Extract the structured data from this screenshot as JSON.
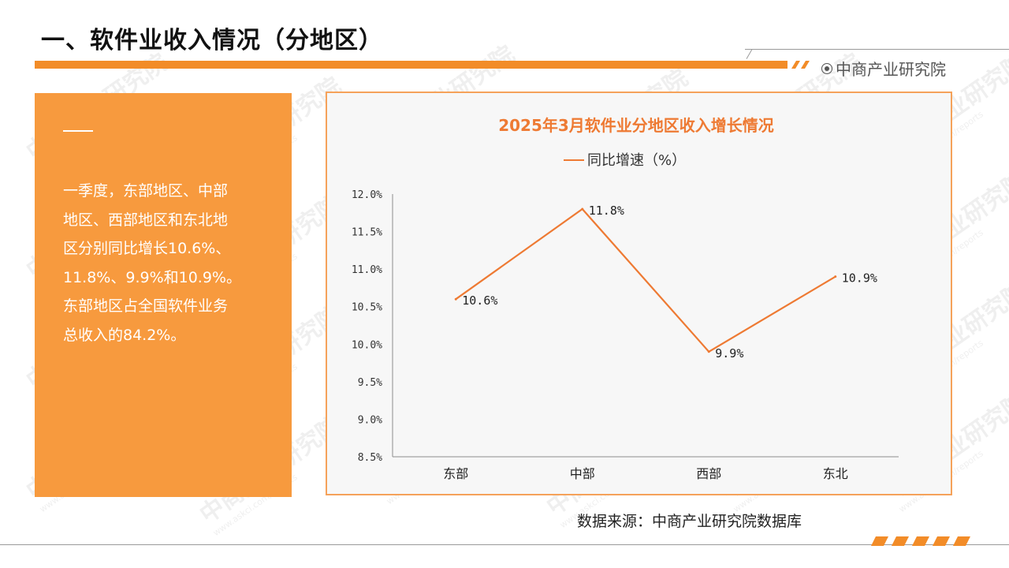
{
  "header": {
    "page_title": "一、软件业收入情况（分地区）",
    "brand": "中商产业研究院"
  },
  "summary": {
    "lines": [
      "一季度，东部地区、中部",
      "地区、西部地区和东北地",
      "区分别同比增长10.6%、",
      "11.8%、9.9%和10.9%。",
      "东部地区占全国软件业务",
      "总收入的84.2%。"
    ]
  },
  "footer": {
    "source": "数据来源：中商产业研究院数据库"
  },
  "watermark": {
    "text": "中商产业研究院",
    "url": "www.askci.com/reports"
  },
  "colors": {
    "accent": "#f28c28",
    "panel": "#f79a3e",
    "line": "#ee7a33",
    "chart_title": "#ee7a33"
  },
  "chart_data": {
    "type": "line",
    "title": "2025年3月软件业分地区收入增长情况",
    "legend_position": "top",
    "categories": [
      "东部",
      "中部",
      "西部",
      "东北"
    ],
    "series": [
      {
        "name": "同比增速（%）",
        "values": [
          10.6,
          11.8,
          9.9,
          10.9
        ]
      }
    ],
    "data_labels": [
      "10.6%",
      "11.8%",
      "9.9%",
      "10.9%"
    ],
    "y_ticks": [
      "8.5%",
      "9.0%",
      "9.5%",
      "10.0%",
      "10.5%",
      "11.0%",
      "11.5%",
      "12.0%"
    ],
    "y_tick_values": [
      8.5,
      9.0,
      9.5,
      10.0,
      10.5,
      11.0,
      11.5,
      12.0
    ],
    "ylim": [
      8.5,
      12.0
    ],
    "grid": false
  }
}
